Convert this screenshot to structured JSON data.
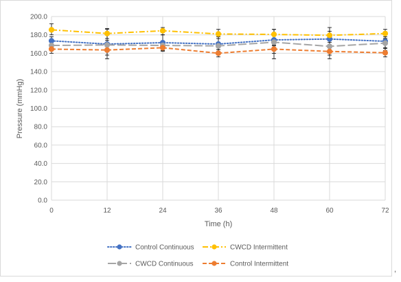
{
  "chart_data": {
    "type": "line",
    "xlabel": "Time (h)",
    "ylabel": "Pressure (mmHg)",
    "x": [
      0,
      12,
      24,
      36,
      48,
      60,
      72
    ],
    "xticks": [
      "0",
      "12",
      "24",
      "36",
      "48",
      "60",
      "72"
    ],
    "ylim": [
      0,
      200
    ],
    "yticks": [
      "0.0",
      "20.0",
      "40.0",
      "60.0",
      "80.0",
      "100.0",
      "120.0",
      "140.0",
      "160.0",
      "180.0",
      "200.0"
    ],
    "grid": true,
    "legend_position": "bottom",
    "series": [
      {
        "name": "Control Continuous",
        "color": "#4472c4",
        "dash": "dotted",
        "values": [
          173.5,
          170.0,
          171.5,
          170.0,
          174.5,
          175.5,
          173.0
        ],
        "err_low": [
          168.0,
          154.0,
          163.0,
          162.0,
          154.0,
          154.0,
          163.0
        ],
        "err_high": [
          178.0,
          186.0,
          180.0,
          178.0,
          186.0,
          188.0,
          178.0
        ]
      },
      {
        "name": "CWCD Intermittent",
        "color": "#ffc000",
        "dash": "dashdot",
        "values": [
          185.5,
          181.5,
          184.5,
          181.0,
          180.5,
          179.5,
          181.5
        ],
        "err_low": [
          180.0,
          176.0,
          180.0,
          176.0,
          176.0,
          176.0,
          176.0
        ],
        "err_high": [
          192.0,
          187.0,
          188.0,
          186.0,
          186.0,
          184.0,
          186.0
        ]
      },
      {
        "name": "CWCD Continuous",
        "color": "#a5a5a5",
        "dash": "longdash",
        "values": [
          168.5,
          169.0,
          168.5,
          168.0,
          172.0,
          167.5,
          171.0
        ],
        "err_low": [
          164.0,
          164.0,
          164.0,
          164.0,
          168.0,
          163.0,
          166.0
        ],
        "err_high": [
          173.0,
          174.0,
          173.0,
          172.0,
          176.0,
          172.0,
          176.0
        ]
      },
      {
        "name": "Control Intermittent",
        "color": "#ed7d31",
        "dash": "dashed",
        "values": [
          164.5,
          163.5,
          166.0,
          160.0,
          164.5,
          162.0,
          160.5
        ],
        "err_low": [
          160.0,
          158.0,
          162.0,
          156.0,
          160.0,
          158.0,
          156.0
        ],
        "err_high": [
          169.0,
          168.0,
          170.0,
          164.0,
          169.0,
          166.0,
          165.0
        ]
      }
    ],
    "trailing_text": ","
  }
}
